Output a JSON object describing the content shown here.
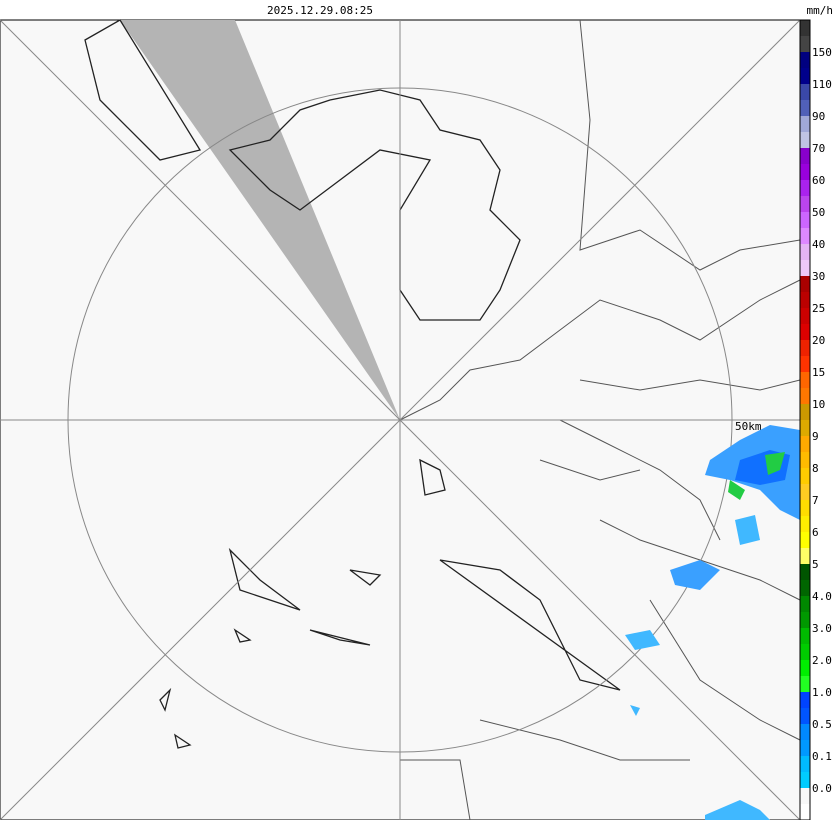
{
  "header": {
    "timestamp": "2025.12.29.08:25",
    "unit": "mm/h"
  },
  "map": {
    "range_label": "50km"
  },
  "legend": {
    "labels": [
      "150",
      "110",
      "90",
      "70",
      "60",
      "50",
      "40",
      "30",
      "25",
      "20",
      "15",
      "10",
      "9",
      "8",
      "7",
      "6",
      "5",
      "4.0",
      "3.0",
      "2.0",
      "1.0",
      "0.5",
      "0.1",
      "0.0"
    ]
  }
}
